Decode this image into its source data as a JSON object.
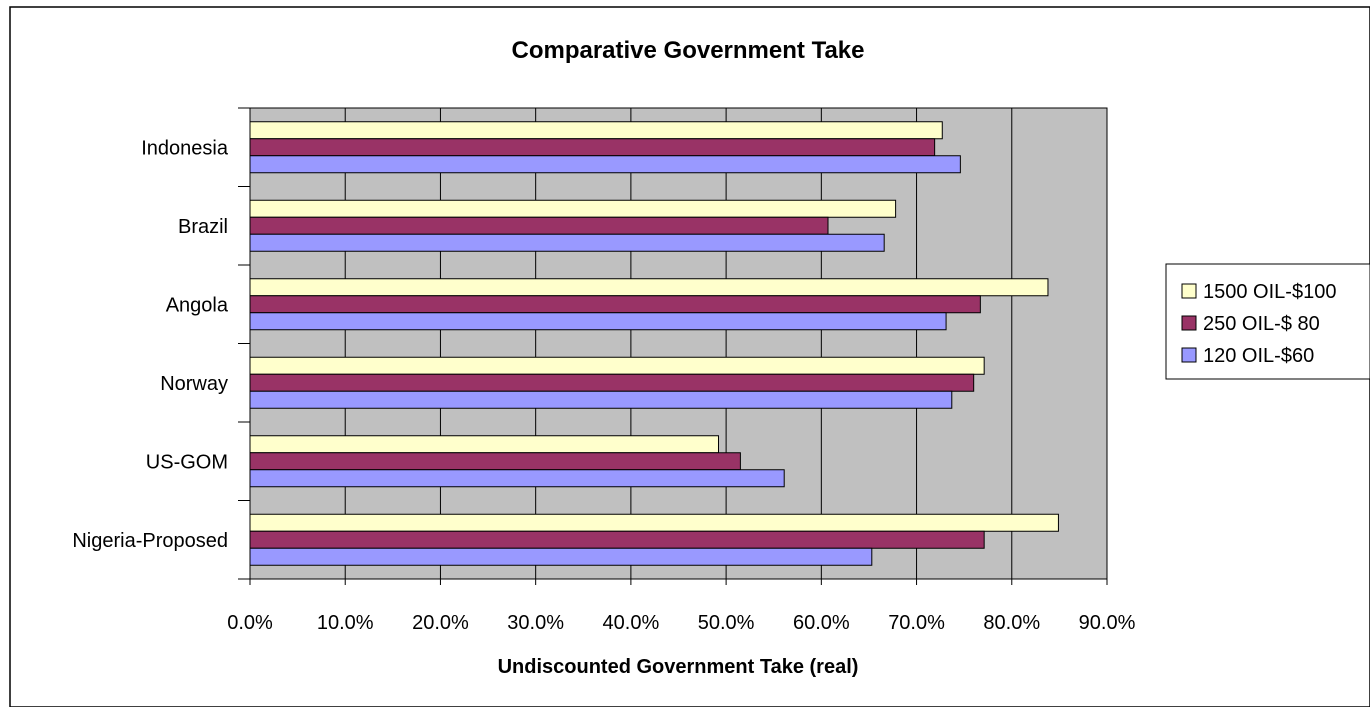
{
  "chart_data": {
    "type": "bar",
    "orientation": "horizontal",
    "title": "Comparative Government Take",
    "xlabel": "Undiscounted Government Take (real)",
    "ylabel": "",
    "xlim": [
      0,
      90
    ],
    "x_ticks": [
      "0.0%",
      "10.0%",
      "20.0%",
      "30.0%",
      "40.0%",
      "50.0%",
      "60.0%",
      "70.0%",
      "80.0%",
      "90.0%"
    ],
    "grid": "vertical",
    "plot_background": "#c0c0c0",
    "legend_position": "right",
    "categories": [
      "Indonesia",
      "Brazil",
      "Angola",
      "Norway",
      "US-GOM",
      "Nigeria-Proposed"
    ],
    "series": [
      {
        "name": "1500 OIL-$100",
        "color": "#ffffcc",
        "values": [
          72.7,
          67.8,
          83.8,
          77.1,
          49.2,
          84.9
        ]
      },
      {
        "name": "250 OIL-$ 80",
        "color": "#993366",
        "values": [
          71.9,
          60.7,
          76.7,
          76.0,
          51.5,
          77.1
        ]
      },
      {
        "name": "120 OIL-$60",
        "color": "#9999ff",
        "values": [
          74.6,
          66.6,
          73.1,
          73.7,
          56.1,
          65.3
        ]
      }
    ]
  }
}
